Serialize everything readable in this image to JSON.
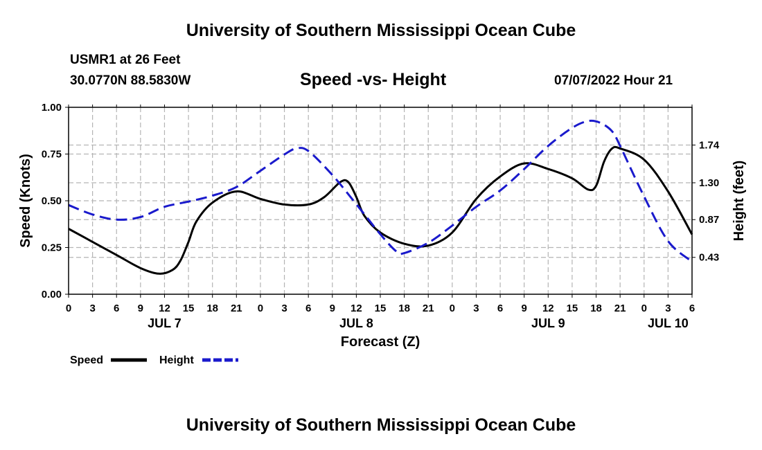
{
  "header": {
    "title": "University of Southern Mississippi Ocean Cube",
    "station": "USMR1 at 26 Feet",
    "coordinates": "30.0770N  88.5830W",
    "chart_title": "Speed -vs- Height",
    "datetime": "07/07/2022 Hour 21"
  },
  "footer": {
    "title": "University of Southern Mississippi Ocean Cube"
  },
  "colors": {
    "speed": "#000000",
    "height": "#1a1acc",
    "grid": "#b4b4b4"
  },
  "chart_data": {
    "type": "line",
    "xlabel": "Forecast (Z)",
    "ylabel_left": "Speed (Knots)",
    "ylabel_right": "Height (feet)",
    "x_range_hours": [
      0,
      78
    ],
    "x_ticks": [
      {
        "h": 0,
        "label": "0"
      },
      {
        "h": 3,
        "label": "3"
      },
      {
        "h": 6,
        "label": "6"
      },
      {
        "h": 9,
        "label": "9"
      },
      {
        "h": 12,
        "label": "12"
      },
      {
        "h": 15,
        "label": "15"
      },
      {
        "h": 18,
        "label": "18"
      },
      {
        "h": 21,
        "label": "21"
      },
      {
        "h": 24,
        "label": "0"
      },
      {
        "h": 27,
        "label": "3"
      },
      {
        "h": 30,
        "label": "6"
      },
      {
        "h": 33,
        "label": "9"
      },
      {
        "h": 36,
        "label": "12"
      },
      {
        "h": 39,
        "label": "15"
      },
      {
        "h": 42,
        "label": "18"
      },
      {
        "h": 45,
        "label": "21"
      },
      {
        "h": 48,
        "label": "0"
      },
      {
        "h": 51,
        "label": "3"
      },
      {
        "h": 54,
        "label": "6"
      },
      {
        "h": 57,
        "label": "9"
      },
      {
        "h": 60,
        "label": "12"
      },
      {
        "h": 63,
        "label": "15"
      },
      {
        "h": 66,
        "label": "18"
      },
      {
        "h": 69,
        "label": "21"
      },
      {
        "h": 72,
        "label": "0"
      },
      {
        "h": 75,
        "label": "3"
      },
      {
        "h": 78,
        "label": "6"
      }
    ],
    "day_labels": [
      {
        "h": 12,
        "label": "JUL 7"
      },
      {
        "h": 36,
        "label": "JUL 8"
      },
      {
        "h": 60,
        "label": "JUL 9"
      },
      {
        "h": 75,
        "label": "JUL 10"
      }
    ],
    "y_left": {
      "range": [
        0,
        1.0
      ],
      "ticks": [
        0.0,
        0.25,
        0.5,
        0.75,
        1.0
      ],
      "labels": [
        "0.00",
        "0.25",
        "0.50",
        "0.75",
        "1.00"
      ]
    },
    "y_right": {
      "range": [
        0.0,
        2.18
      ],
      "ticks": [
        0.43,
        0.87,
        1.3,
        1.74
      ],
      "labels": [
        "0.43",
        "0.87",
        "1.30",
        "1.74"
      ]
    },
    "series": [
      {
        "name": "Speed",
        "axis": "left",
        "points": [
          [
            0,
            0.35
          ],
          [
            3,
            0.28
          ],
          [
            6,
            0.21
          ],
          [
            9,
            0.14
          ],
          [
            11.3,
            0.11
          ],
          [
            13,
            0.13
          ],
          [
            14,
            0.18
          ],
          [
            15,
            0.28
          ],
          [
            16,
            0.39
          ],
          [
            18,
            0.49
          ],
          [
            21,
            0.55
          ],
          [
            24,
            0.51
          ],
          [
            27,
            0.48
          ],
          [
            30,
            0.48
          ],
          [
            32,
            0.52
          ],
          [
            34,
            0.6
          ],
          [
            35,
            0.6
          ],
          [
            36,
            0.52
          ],
          [
            37,
            0.42
          ],
          [
            39,
            0.33
          ],
          [
            42,
            0.27
          ],
          [
            45,
            0.26
          ],
          [
            48,
            0.33
          ],
          [
            51,
            0.51
          ],
          [
            54,
            0.63
          ],
          [
            57,
            0.7
          ],
          [
            60,
            0.67
          ],
          [
            63,
            0.62
          ],
          [
            65,
            0.56
          ],
          [
            66,
            0.58
          ],
          [
            67,
            0.71
          ],
          [
            68,
            0.78
          ],
          [
            69,
            0.78
          ],
          [
            72,
            0.72
          ],
          [
            75,
            0.55
          ],
          [
            78,
            0.32
          ]
        ]
      },
      {
        "name": "Height",
        "axis": "right",
        "points": [
          [
            0,
            1.04
          ],
          [
            3,
            0.93
          ],
          [
            6,
            0.87
          ],
          [
            9,
            0.9
          ],
          [
            12,
            1.02
          ],
          [
            15,
            1.08
          ],
          [
            18,
            1.15
          ],
          [
            21,
            1.25
          ],
          [
            24,
            1.44
          ],
          [
            27,
            1.63
          ],
          [
            28.5,
            1.7
          ],
          [
            30,
            1.67
          ],
          [
            33,
            1.39
          ],
          [
            36,
            1.05
          ],
          [
            39,
            0.7
          ],
          [
            41,
            0.5
          ],
          [
            42,
            0.48
          ],
          [
            45,
            0.6
          ],
          [
            48,
            0.8
          ],
          [
            51,
            1.02
          ],
          [
            54,
            1.21
          ],
          [
            57,
            1.46
          ],
          [
            60,
            1.73
          ],
          [
            63,
            1.94
          ],
          [
            65,
            2.02
          ],
          [
            66.5,
            2.0
          ],
          [
            68,
            1.9
          ],
          [
            69,
            1.73
          ],
          [
            72,
            1.14
          ],
          [
            75,
            0.62
          ],
          [
            78,
            0.38
          ]
        ]
      }
    ],
    "legend": [
      {
        "label": "Speed"
      },
      {
        "label": "Height"
      }
    ]
  }
}
